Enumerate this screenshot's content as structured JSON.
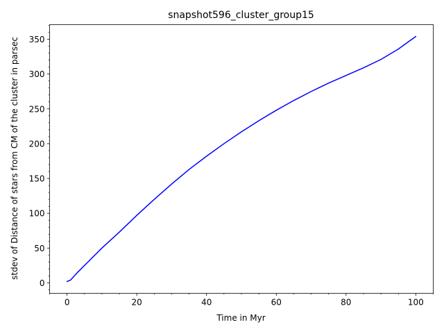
{
  "chart_data": {
    "type": "line",
    "title": "snapshot596_cluster_group15",
    "xlabel": "Time in Myr",
    "ylabel": "stdev of Distance of stars from CM of the cluster in parsec",
    "xlim": [
      -5,
      105
    ],
    "ylim": [
      -15,
      371
    ],
    "x_ticks": [
      0,
      20,
      40,
      60,
      80,
      100
    ],
    "y_ticks": [
      0,
      50,
      100,
      150,
      200,
      250,
      300,
      350
    ],
    "x_minor_step": 5,
    "y_minor_step": 10,
    "grid": false,
    "legend": "none",
    "series": [
      {
        "color": "#0000ff",
        "x": [
          0,
          1,
          3,
          6,
          10,
          15,
          20,
          25,
          30,
          35,
          40,
          45,
          50,
          55,
          60,
          65,
          70,
          75,
          80,
          85,
          90,
          95,
          100
        ],
        "y": [
          2,
          4,
          15,
          30,
          50,
          73,
          97,
          120,
          142,
          163,
          182,
          200,
          217,
          233,
          248,
          262,
          275,
          287,
          298,
          309,
          321,
          336,
          354
        ]
      }
    ]
  }
}
